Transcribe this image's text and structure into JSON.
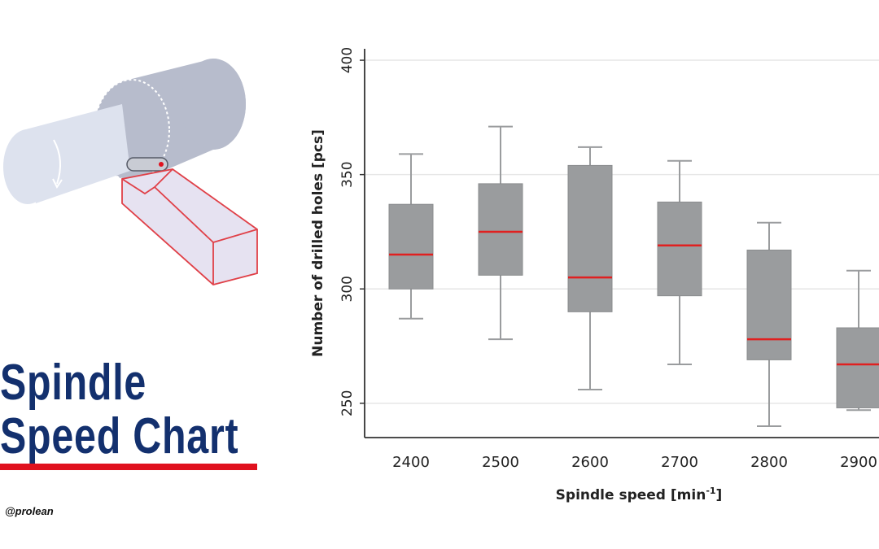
{
  "title_lines": [
    "Spindle",
    "Speed Chart"
  ],
  "handle": "@prolean",
  "colors": {
    "title": "#13306e",
    "accent": "#e0111e",
    "box_fill": "#9a9c9e",
    "whisker": "#9a9c9e",
    "median": "#e02020",
    "axis": "#333333",
    "grid": "#e6e6e6",
    "tool_fill": "#e6e2f1",
    "tool_stroke": "#e04048",
    "spindle_fill": "#dde2ee",
    "chuck_fill": "#b7bccc"
  },
  "illustration": {
    "icon": "spindle-and-cutting-tool-icon"
  },
  "chart_data": {
    "type": "box",
    "xlabel_prefix": "Spindle speed [min",
    "xlabel_sup": "-1",
    "xlabel_suffix": "]",
    "ylabel": "Number of drilled holes [pcs]",
    "ylim": [
      235,
      405
    ],
    "yticks": [
      250,
      300,
      350,
      400
    ],
    "grid": true,
    "categories": [
      "2400",
      "2500",
      "2600",
      "2700",
      "2800",
      "2900"
    ],
    "boxes": [
      {
        "min": 287,
        "q1": 300,
        "median": 315,
        "q3": 337,
        "max": 359
      },
      {
        "min": 278,
        "q1": 306,
        "median": 325,
        "q3": 346,
        "max": 371
      },
      {
        "min": 256,
        "q1": 290,
        "median": 305,
        "q3": 354,
        "max": 362
      },
      {
        "min": 267,
        "q1": 297,
        "median": 319,
        "q3": 338,
        "max": 356
      },
      {
        "min": 240,
        "q1": 269,
        "median": 278,
        "q3": 317,
        "max": 329
      },
      {
        "min": 247,
        "q1": 248,
        "median": 267,
        "q3": 283,
        "max": 308
      }
    ]
  }
}
